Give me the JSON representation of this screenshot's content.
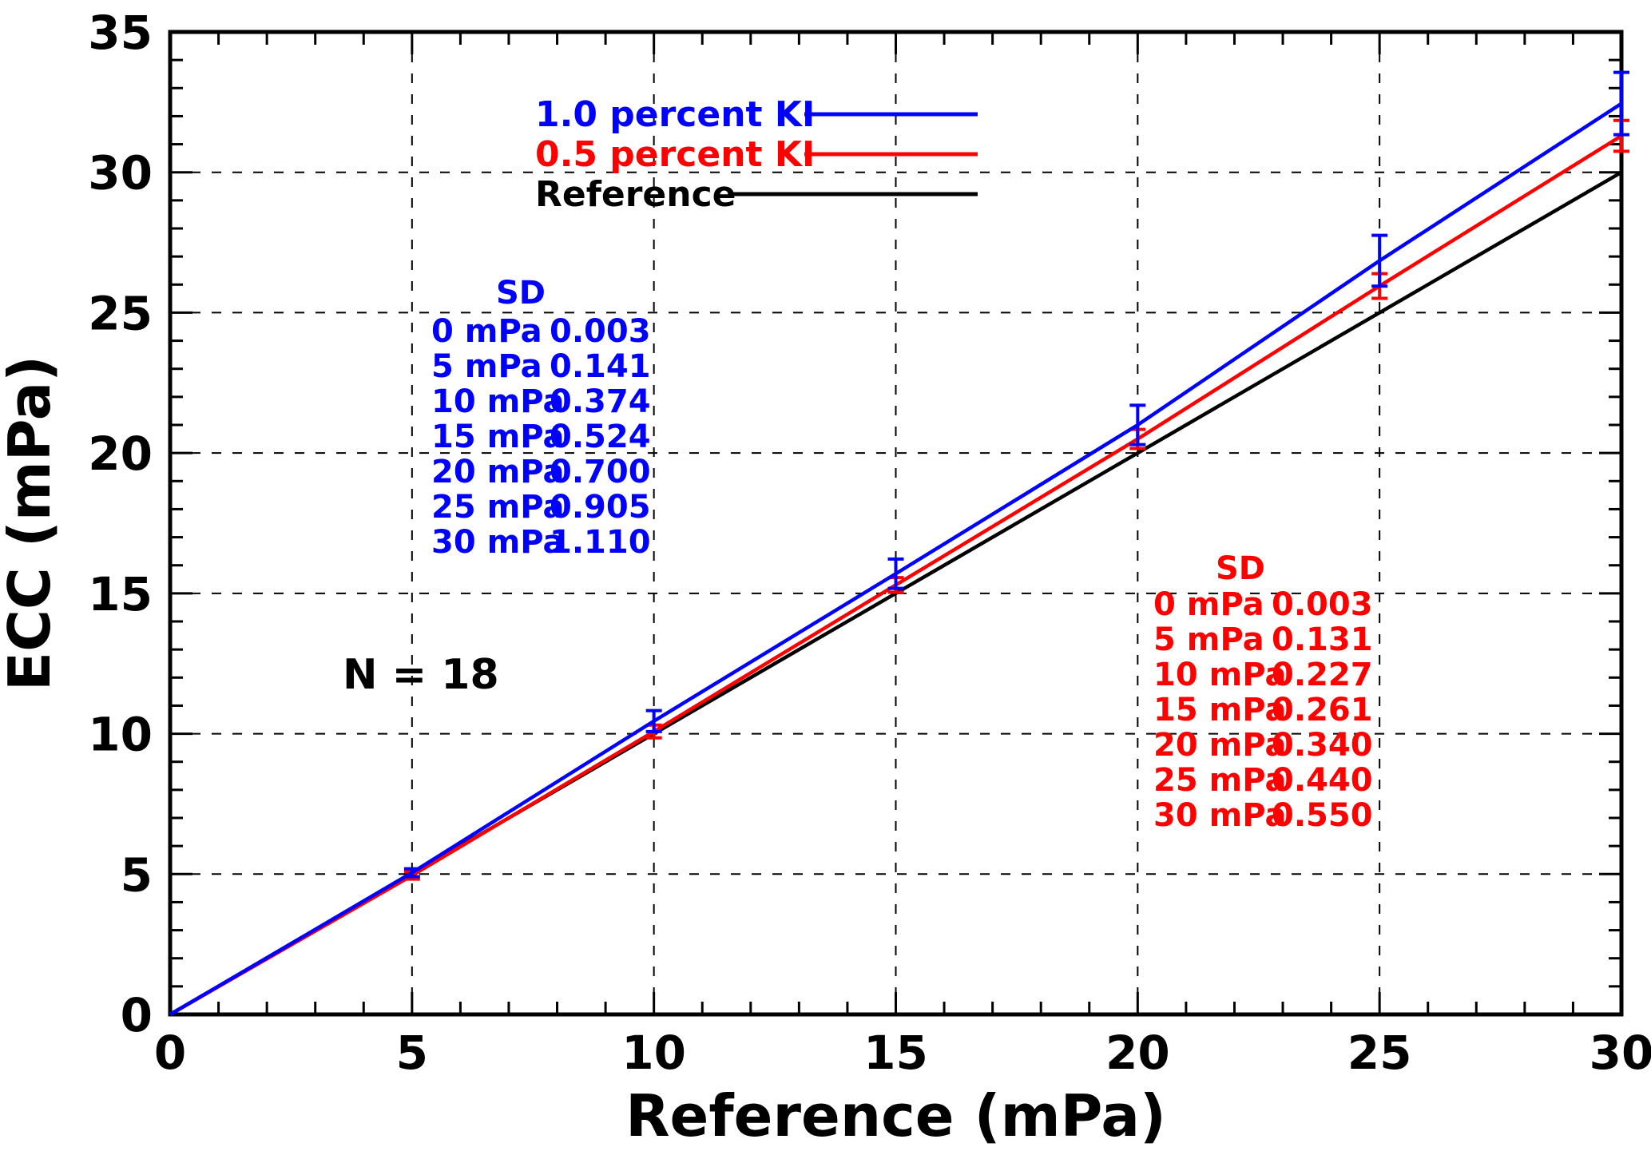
{
  "page": {
    "background": "#ffffff"
  },
  "chart_data": {
    "type": "line",
    "title": "",
    "xlabel": "Reference (mPa)",
    "ylabel": "ECC (mPa)",
    "xlim": [
      0,
      30
    ],
    "ylim": [
      0,
      35
    ],
    "x_major_ticks": [
      0,
      5,
      10,
      15,
      20,
      25,
      30
    ],
    "y_major_ticks": [
      0,
      5,
      10,
      15,
      20,
      25,
      30,
      35
    ],
    "minor_tick_step": 1,
    "grid": "dashed-major",
    "legend_position": "top-center",
    "x": [
      0,
      5,
      10,
      15,
      20,
      25,
      30
    ],
    "series": [
      {
        "name": "1.0 percent KI",
        "color": "#0000ff",
        "values": [
          0,
          5.05,
          10.45,
          15.7,
          21.0,
          26.85,
          32.45
        ],
        "sd": [
          0.003,
          0.141,
          0.374,
          0.524,
          0.7,
          0.905,
          1.11
        ]
      },
      {
        "name": "0.5 percent KI",
        "color": "#ff0000",
        "values": [
          0,
          4.95,
          10.08,
          15.3,
          20.5,
          25.95,
          31.3
        ],
        "sd": [
          0.003,
          0.131,
          0.227,
          0.261,
          0.34,
          0.44,
          0.55
        ]
      },
      {
        "name": "Reference",
        "color": "#000000",
        "values": [
          0,
          5,
          10,
          15,
          20,
          25,
          30
        ]
      }
    ],
    "legend": {
      "entries": [
        "1.0 percent KI",
        "0.5 percent KI",
        "Reference"
      ]
    },
    "annotations": [
      {
        "text": "N = 18",
        "color": "#000000"
      }
    ],
    "sd_tables": [
      {
        "header": "SD",
        "color": "#0000ff",
        "series": "1.0 percent KI",
        "rows": [
          [
            "0 mPa",
            "0.003"
          ],
          [
            "5 mPa",
            "0.141"
          ],
          [
            "10 mPa",
            "0.374"
          ],
          [
            "15 mPa",
            "0.524"
          ],
          [
            "20 mPa",
            "0.700"
          ],
          [
            "25 mPa",
            "0.905"
          ],
          [
            "30 mPa",
            "1.110"
          ]
        ]
      },
      {
        "header": "SD",
        "color": "#ff0000",
        "series": "0.5 percent KI",
        "rows": [
          [
            "0 mPa",
            "0.003"
          ],
          [
            "5 mPa",
            "0.131"
          ],
          [
            "10 mPa",
            "0.227"
          ],
          [
            "15 mPa",
            "0.261"
          ],
          [
            "20 mPa",
            "0.340"
          ],
          [
            "25 mPa",
            "0.440"
          ],
          [
            "30 mPa",
            "0.550"
          ]
        ]
      }
    ]
  }
}
